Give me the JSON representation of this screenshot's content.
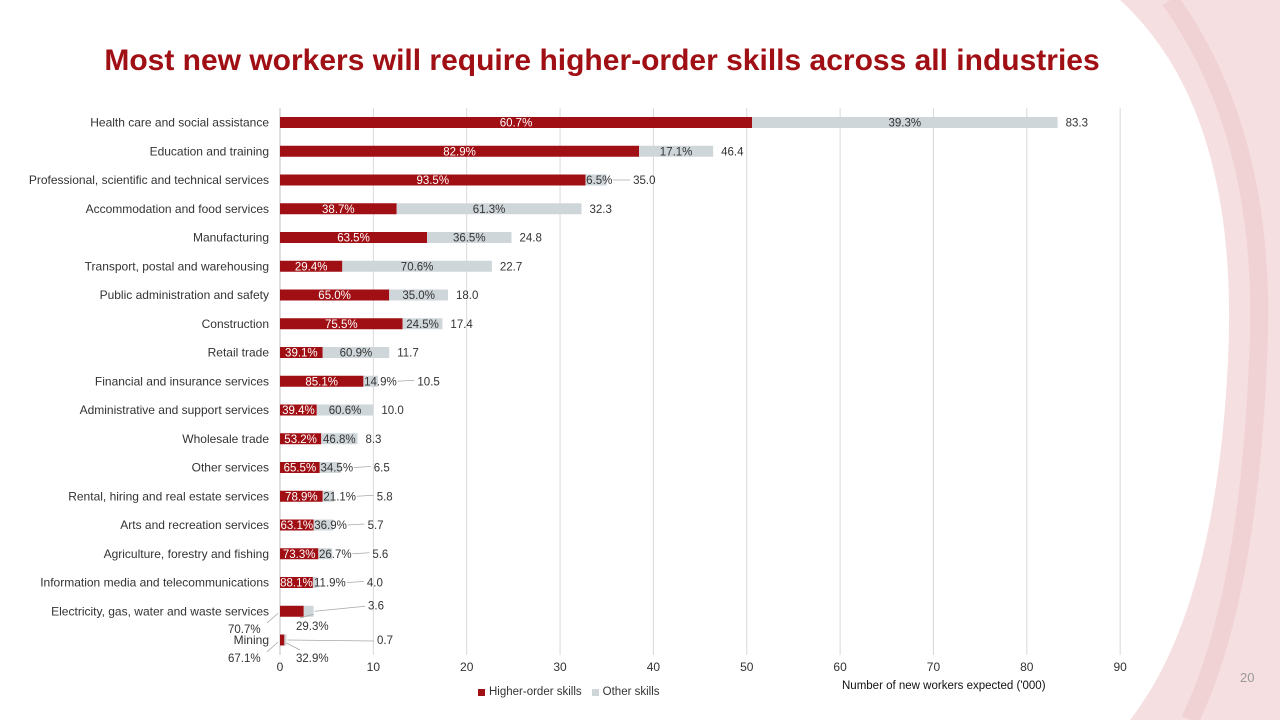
{
  "slide": {
    "title": "Most new workers will require higher-order skills across all industries",
    "page_number": "20"
  },
  "colors": {
    "higher_order": "#a00f14",
    "other": "#cfd6da",
    "decor": "#f6dfe0",
    "grid": "#d9d9d9"
  },
  "chart_data": {
    "type": "bar",
    "orientation": "horizontal",
    "stacked": true,
    "xlabel": "Number  of new workers expected  ('000)",
    "xlim": [
      0,
      90
    ],
    "xticks": [
      0,
      10,
      20,
      30,
      40,
      50,
      60,
      70,
      80,
      90
    ],
    "grid": true,
    "legend_position": "bottom",
    "series": [
      {
        "name": "Higher-order skills"
      },
      {
        "name": "Other skills"
      }
    ],
    "categories": [
      "Health care and social assistance",
      "Education and training",
      "Professional, scientific and technical services",
      "Accommodation and food services",
      "Manufacturing",
      "Transport, postal and warehousing",
      "Public administration and safety",
      "Construction",
      "Retail trade",
      "Financial and insurance services",
      "Administrative and support services",
      "Wholesale trade",
      "Other services",
      "Rental, hiring and real estate services",
      "Arts and recreation services",
      "Agriculture, forestry and fishing",
      "Information media and telecommunications",
      "Electricity, gas, water and waste services",
      "Mining"
    ],
    "totals": [
      83.3,
      46.4,
      35.0,
      32.3,
      24.8,
      22.7,
      18.0,
      17.4,
      11.7,
      10.5,
      10.0,
      8.3,
      6.5,
      5.8,
      5.7,
      5.6,
      4.0,
      3.6,
      0.7
    ],
    "totals_labels": [
      "83.3",
      "46.4",
      "35.0",
      "32.3",
      "24.8",
      "22.7",
      "18.0",
      "17.4",
      "11.7",
      "10.5",
      "10.0",
      "8.3",
      "6.5",
      "5.8",
      "5.7",
      "5.6",
      "4.0",
      "3.6",
      "0.7"
    ],
    "higher_order_pct": [
      60.7,
      82.9,
      93.5,
      38.7,
      63.5,
      29.4,
      65.0,
      75.5,
      39.1,
      85.1,
      39.4,
      53.2,
      65.5,
      78.9,
      63.1,
      73.3,
      88.1,
      70.7,
      67.1
    ],
    "higher_order_labels": [
      "60.7%",
      "82.9%",
      "93.5%",
      "38.7%",
      "63.5%",
      "29.4%",
      "65.0%",
      "75.5%",
      "39.1%",
      "85.1%",
      "39.4%",
      "53.2%",
      "65.5%",
      "78.9%",
      "63.1%",
      "73.3%",
      "88.1%",
      "70.7%",
      "67.1%"
    ],
    "other_labels": [
      "39.3%",
      "17.1%",
      "6.5%",
      "61.3%",
      "36.5%",
      "70.6%",
      "35.0%",
      "24.5%",
      "60.9%",
      "14.9%",
      "60.6%",
      "46.8%",
      "34.5%",
      "21.1%",
      "36.9%",
      "26.7%",
      "11.9%",
      "29.3%",
      "32.9%"
    ]
  }
}
